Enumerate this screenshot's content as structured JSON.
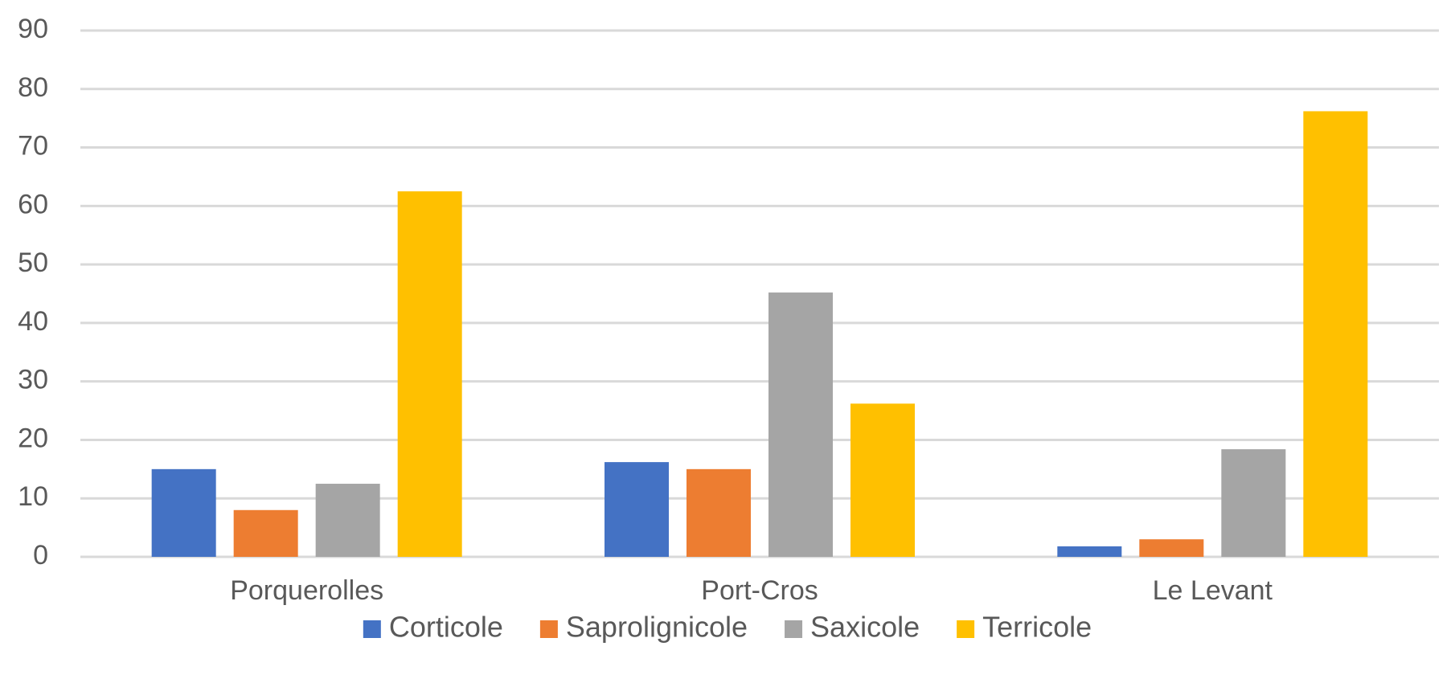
{
  "chart_data": {
    "type": "bar",
    "title": "",
    "xlabel": "",
    "ylabel": "",
    "ylim": [
      0,
      90
    ],
    "yticks": [
      0,
      10,
      20,
      30,
      40,
      50,
      60,
      70,
      80,
      90
    ],
    "grid": true,
    "legend_position": "bottom",
    "categories": [
      "Porquerolles",
      "Port-Cros",
      "Le Levant"
    ],
    "series": [
      {
        "name": "Corticole",
        "color": "#4472C4",
        "values": [
          15,
          16.2,
          1.8
        ]
      },
      {
        "name": "Saprolignicole",
        "color": "#ED7D31",
        "values": [
          8,
          15,
          3
        ]
      },
      {
        "name": "Saxicole",
        "color": "#A5A5A5",
        "values": [
          12.5,
          45.2,
          18.4
        ]
      },
      {
        "name": "Terricole",
        "color": "#FFC000",
        "values": [
          62.5,
          26.2,
          76.2
        ]
      }
    ]
  }
}
